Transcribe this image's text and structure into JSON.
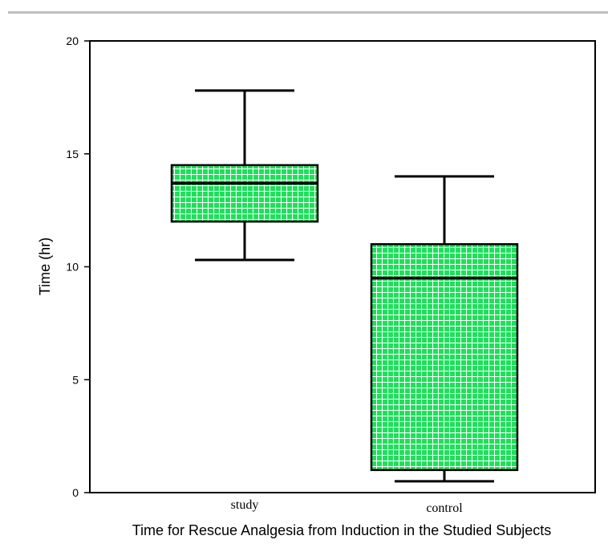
{
  "chart_data": {
    "type": "boxplot",
    "title": "",
    "xlabel": "Time for Rescue Analgesia from Induction in the Studied Subjects",
    "ylabel": "Time (hr)",
    "ylim": [
      0,
      20
    ],
    "yticks": [
      0,
      5,
      10,
      15,
      20
    ],
    "grid": false,
    "categories": [
      "study",
      "control"
    ],
    "boxes": [
      {
        "category": "study",
        "min": 10.3,
        "q1": 12.0,
        "median": 13.7,
        "q3": 14.5,
        "max": 17.8
      },
      {
        "category": "control",
        "min": 0.5,
        "q1": 1.0,
        "median": 9.5,
        "q3": 11.0,
        "max": 14.0
      }
    ],
    "box_fill": "#1ee05a",
    "box_hatch": "#ffffff",
    "line_color": "#000000"
  }
}
